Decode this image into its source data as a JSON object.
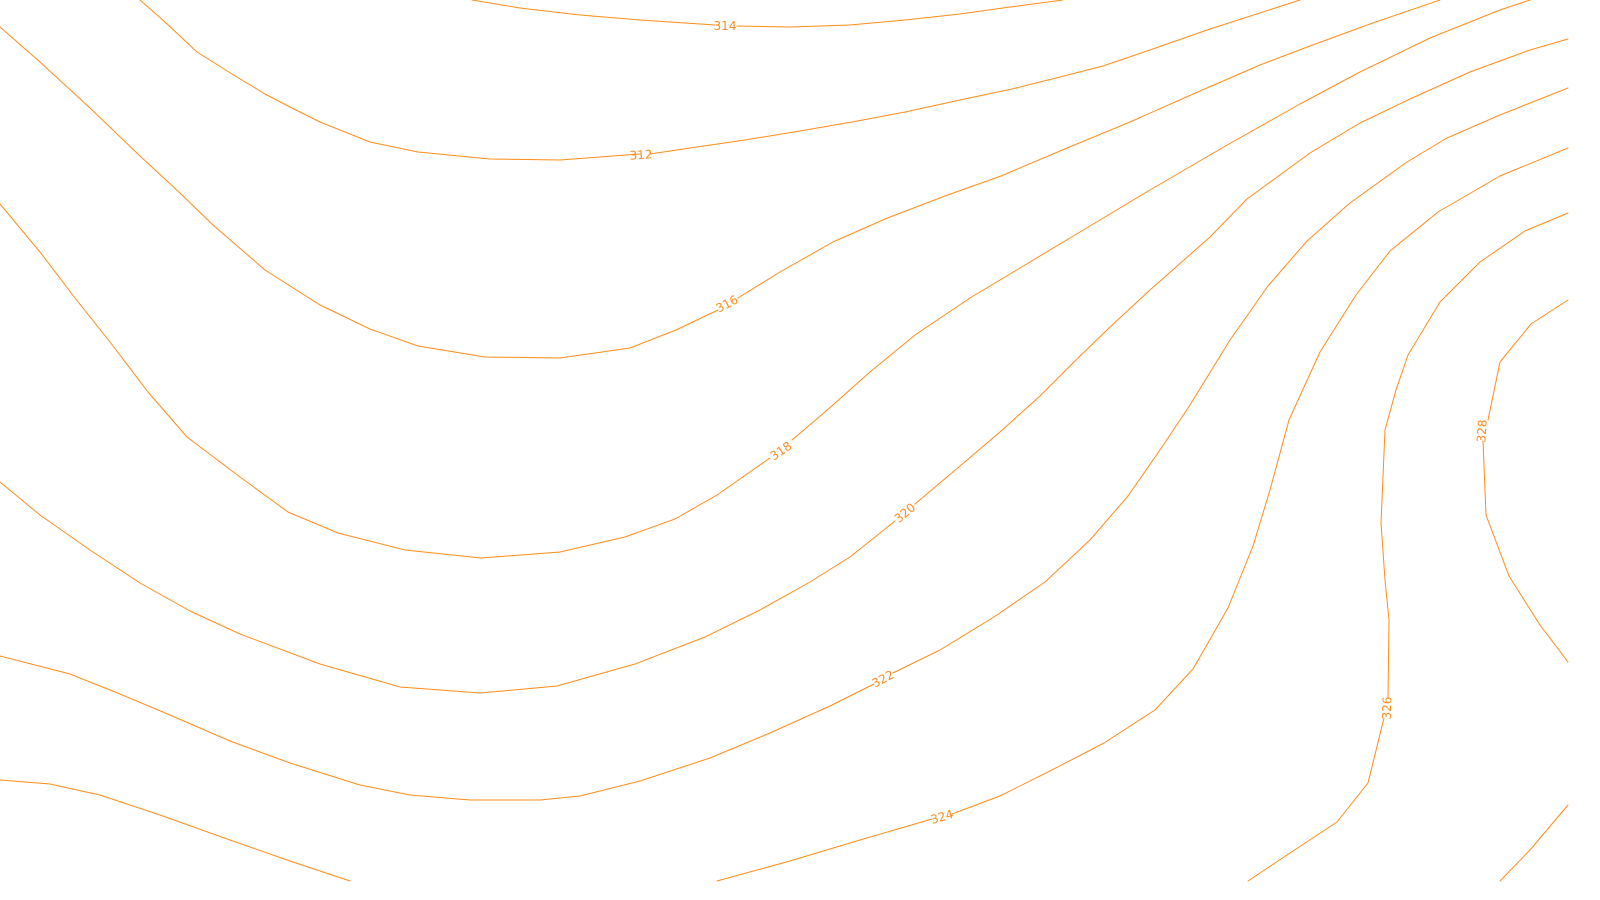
{
  "map": {
    "background_color": "#ffffff",
    "contour_color": "#ff8c1a",
    "contours": [
      {
        "elevation": 312,
        "label": "312"
      },
      {
        "elevation": 314,
        "label": "314"
      },
      {
        "elevation": 316,
        "label": "316"
      },
      {
        "elevation": 318,
        "label": "318"
      },
      {
        "elevation": 320,
        "label": "320"
      },
      {
        "elevation": 322,
        "label": "322"
      },
      {
        "elevation": 324,
        "label": "324"
      },
      {
        "elevation": 326,
        "label": "326"
      },
      {
        "elevation": 328,
        "label": "328"
      }
    ]
  }
}
